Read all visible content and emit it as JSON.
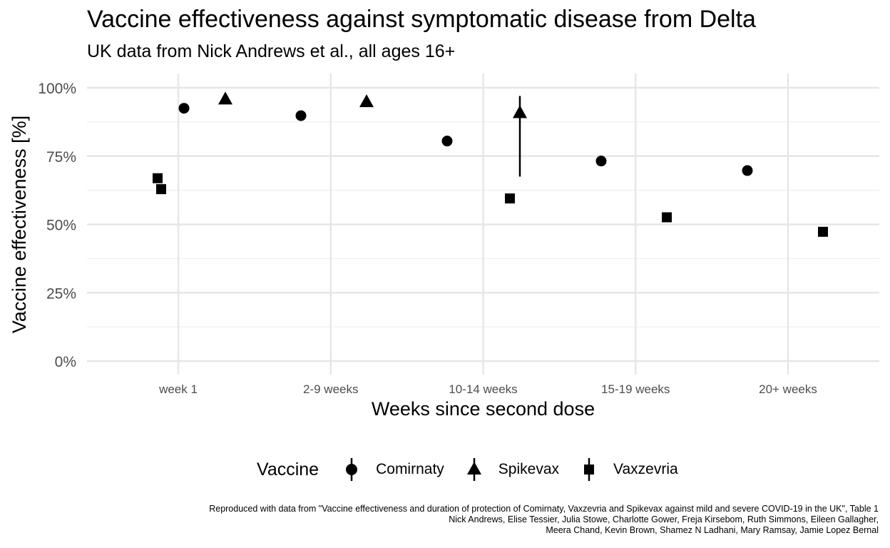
{
  "chart_data": {
    "type": "scatter",
    "title": "Vaccine effectiveness against symptomatic disease from Delta",
    "subtitle": "UK data from Nick Andrews et al., all ages 16+",
    "xlabel": "Weeks since second dose",
    "ylabel": "Vaccine effectiveness [%]",
    "categories": [
      "week 1",
      "2-9 weeks",
      "10-14 weeks",
      "15-19 weeks",
      "20+ weeks"
    ],
    "ylim": [
      0,
      100
    ],
    "yticks": [
      0,
      25,
      50,
      75,
      100
    ],
    "ytick_labels": [
      "0%",
      "25%",
      "50%",
      "75%",
      "100%"
    ],
    "grid": true,
    "legend": {
      "title": "Vaccine",
      "position": "bottom"
    },
    "series": [
      {
        "name": "Comirnaty",
        "shape": "circle",
        "values": [
          92.5,
          89.8,
          80.5,
          73.2,
          69.7
        ],
        "err_low": [
          null,
          null,
          null,
          null,
          null
        ],
        "err_high": [
          null,
          null,
          null,
          null,
          null
        ]
      },
      {
        "name": "Spikevax",
        "shape": "triangle",
        "values": [
          96.0,
          95.0,
          91.0,
          null,
          null
        ],
        "err_low": [
          null,
          null,
          67.5,
          null,
          null
        ],
        "err_high": [
          null,
          null,
          97.0,
          null,
          null
        ]
      },
      {
        "name": "Vaxzevria",
        "shape": "square",
        "values": [
          62.9,
          66.9,
          59.5,
          52.6,
          47.3
        ],
        "err_low": [
          null,
          null,
          null,
          null,
          46.0
        ],
        "err_high": [
          null,
          null,
          null,
          null,
          48.5
        ]
      }
    ],
    "caption": [
      "Reproduced with data from \"Vaccine effectiveness and duration of protection of Comirnaty, Vaxzevria and Spikevax against mild and severe COVID-19 in the UK\", Table 1",
      "Nick Andrews, Elise Tessier, Julia Stowe, Charlotte Gower, Freja Kirsebom, Ruth Simmons, Eileen Gallagher,",
      "Meera Chand, Kevin Brown, Shamez N Ladhani, Mary Ramsay, Jamie Lopez Bernal"
    ]
  }
}
